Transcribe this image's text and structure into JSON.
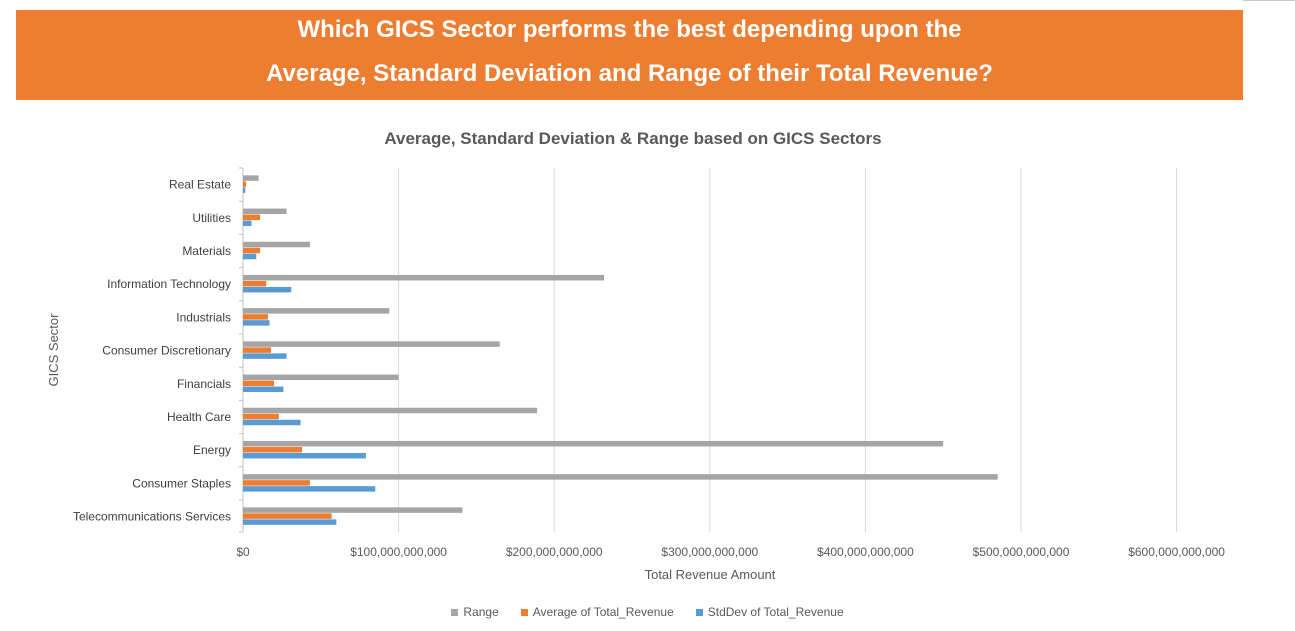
{
  "banner": {
    "line1": "Which GICS Sector performs the best depending upon the",
    "line2": "Average, Standard Deviation and Range of their Total Revenue?"
  },
  "chart_data": {
    "type": "bar",
    "orientation": "horizontal",
    "title": "Average, Standard Deviation & Range based on GICS Sectors",
    "xlabel": "Total Revenue Amount",
    "ylabel": "GICS Sector",
    "xlim": [
      0,
      600000000000
    ],
    "x_ticks": [
      0,
      100000000000,
      200000000000,
      300000000000,
      400000000000,
      500000000000,
      600000000000
    ],
    "x_tick_labels": [
      "$0",
      "$100,000,000,000",
      "$200,000,000,000",
      "$300,000,000,000",
      "$400,000,000,000",
      "$500,000,000,000",
      "$600,000,000,000"
    ],
    "grid": "vertical",
    "legend_position": "bottom",
    "categories": [
      "Real Estate",
      "Utilities",
      "Materials",
      "Information Technology",
      "Industrials",
      "Consumer Discretionary",
      "Financials",
      "Health Care",
      "Energy",
      "Consumer Staples",
      "Telecommunications Services"
    ],
    "series": [
      {
        "name": "Range",
        "color": "#a5a5a5",
        "values": [
          10000000000,
          28000000000,
          43000000000,
          232000000000,
          94000000000,
          165000000000,
          100000000000,
          189000000000,
          450000000000,
          485000000000,
          141000000000
        ]
      },
      {
        "name": "Average of Total_Revenue",
        "color": "#ed7d31",
        "values": [
          2000000000,
          11000000000,
          11000000000,
          15000000000,
          16000000000,
          18000000000,
          20000000000,
          23000000000,
          38000000000,
          43000000000,
          57000000000
        ]
      },
      {
        "name": "StdDev of Total_Revenue",
        "color": "#5b9bd5",
        "values": [
          1500000000,
          5500000000,
          8500000000,
          31000000000,
          17000000000,
          28000000000,
          26000000000,
          37000000000,
          79000000000,
          85000000000,
          60000000000
        ]
      }
    ]
  }
}
